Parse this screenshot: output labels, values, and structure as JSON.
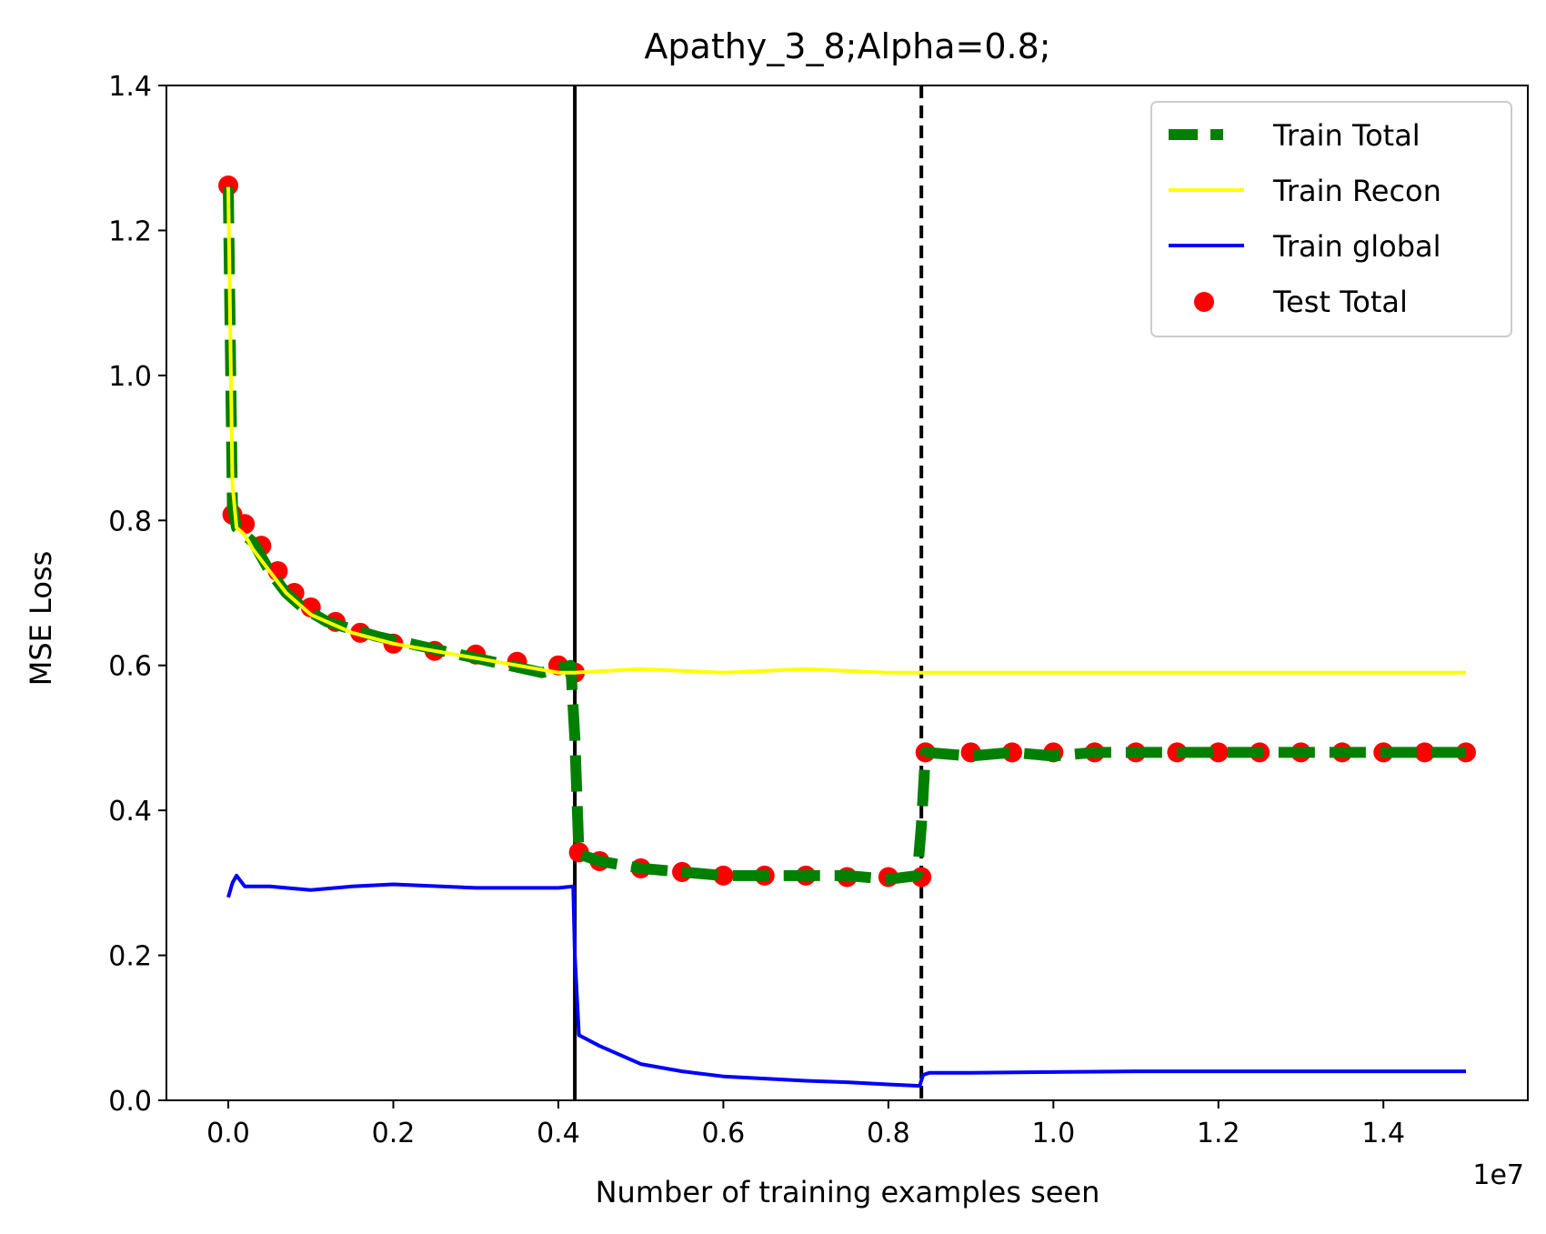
{
  "chart_data": {
    "type": "line",
    "title": "Apathy_3_8;Alpha=0.8;",
    "xlabel": "Number of training examples seen",
    "ylabel": "MSE Loss",
    "x_offset_label": "1e7",
    "xlim": [
      -0.075,
      1.575
    ],
    "ylim": [
      0.0,
      1.4
    ],
    "x_ticks": [
      0.0,
      0.2,
      0.4,
      0.6,
      0.8,
      1.0,
      1.2,
      1.4
    ],
    "x_tick_labels": [
      "0.0",
      "0.2",
      "0.4",
      "0.6",
      "0.8",
      "1.0",
      "1.2",
      "1.4"
    ],
    "y_ticks": [
      0.0,
      0.2,
      0.4,
      0.6,
      0.8,
      1.0,
      1.2,
      1.4
    ],
    "y_tick_labels": [
      "0.0",
      "0.2",
      "0.4",
      "0.6",
      "0.8",
      "1.0",
      "1.2",
      "1.4"
    ],
    "grid": false,
    "legend_position": "top-right",
    "vlines": [
      {
        "x": 0.42,
        "style": "solid",
        "color": "#000000"
      },
      {
        "x": 0.84,
        "style": "dashed",
        "color": "#000000"
      }
    ],
    "series": [
      {
        "name": "Train Total",
        "type": "line",
        "color": "#008000",
        "style": "dashed-thick",
        "x": [
          0.0,
          0.005,
          0.01,
          0.02,
          0.03,
          0.04,
          0.05,
          0.07,
          0.09,
          0.12,
          0.15,
          0.18,
          0.22,
          0.26,
          0.3,
          0.34,
          0.38,
          0.415,
          0.42,
          0.425,
          0.45,
          0.5,
          0.55,
          0.6,
          0.65,
          0.7,
          0.75,
          0.8,
          0.835,
          0.84,
          0.845,
          0.9,
          0.95,
          1.0,
          1.05,
          1.1,
          1.15,
          1.2,
          1.25,
          1.3,
          1.35,
          1.4,
          1.45,
          1.5
        ],
        "y": [
          1.26,
          0.82,
          0.79,
          0.78,
          0.77,
          0.75,
          0.73,
          0.7,
          0.68,
          0.66,
          0.65,
          0.64,
          0.63,
          0.62,
          0.61,
          0.6,
          0.59,
          0.6,
          0.5,
          0.34,
          0.33,
          0.32,
          0.315,
          0.31,
          0.31,
          0.31,
          0.31,
          0.305,
          0.31,
          0.38,
          0.48,
          0.475,
          0.48,
          0.475,
          0.48,
          0.48,
          0.48,
          0.48,
          0.48,
          0.48,
          0.48,
          0.48,
          0.48,
          0.48
        ]
      },
      {
        "name": "Train Recon",
        "type": "line",
        "color": "#ffff00",
        "x": [
          0.0,
          0.005,
          0.01,
          0.02,
          0.03,
          0.05,
          0.07,
          0.1,
          0.15,
          0.2,
          0.25,
          0.3,
          0.35,
          0.4,
          0.42,
          0.5,
          0.6,
          0.7,
          0.8,
          0.84,
          0.9,
          1.0,
          1.1,
          1.2,
          1.3,
          1.4,
          1.5
        ],
        "y": [
          1.26,
          0.85,
          0.79,
          0.78,
          0.76,
          0.73,
          0.7,
          0.67,
          0.645,
          0.63,
          0.62,
          0.61,
          0.6,
          0.59,
          0.59,
          0.595,
          0.59,
          0.595,
          0.59,
          0.59,
          0.59,
          0.59,
          0.59,
          0.59,
          0.59,
          0.59,
          0.59
        ]
      },
      {
        "name": "Train global",
        "type": "line",
        "color": "#0000ff",
        "x": [
          0.0,
          0.005,
          0.01,
          0.02,
          0.05,
          0.1,
          0.15,
          0.2,
          0.3,
          0.4,
          0.418,
          0.42,
          0.425,
          0.45,
          0.5,
          0.55,
          0.6,
          0.65,
          0.7,
          0.75,
          0.8,
          0.838,
          0.842,
          0.85,
          0.9,
          1.0,
          1.1,
          1.2,
          1.3,
          1.4,
          1.5
        ],
        "y": [
          0.28,
          0.3,
          0.31,
          0.295,
          0.295,
          0.29,
          0.295,
          0.298,
          0.293,
          0.293,
          0.295,
          0.2,
          0.09,
          0.075,
          0.05,
          0.04,
          0.033,
          0.03,
          0.027,
          0.025,
          0.022,
          0.02,
          0.035,
          0.038,
          0.038,
          0.039,
          0.04,
          0.04,
          0.04,
          0.04,
          0.04
        ]
      },
      {
        "name": "Test Total",
        "type": "scatter",
        "color": "#ff0000",
        "x": [
          0.0,
          0.005,
          0.02,
          0.04,
          0.06,
          0.08,
          0.1,
          0.13,
          0.16,
          0.2,
          0.25,
          0.3,
          0.35,
          0.4,
          0.42,
          0.425,
          0.45,
          0.5,
          0.55,
          0.6,
          0.65,
          0.7,
          0.75,
          0.8,
          0.84,
          0.845,
          0.9,
          0.95,
          1.0,
          1.05,
          1.1,
          1.15,
          1.2,
          1.25,
          1.3,
          1.35,
          1.4,
          1.45,
          1.5
        ],
        "y": [
          1.262,
          0.808,
          0.795,
          0.765,
          0.73,
          0.7,
          0.68,
          0.66,
          0.645,
          0.63,
          0.62,
          0.615,
          0.605,
          0.6,
          0.59,
          0.342,
          0.33,
          0.32,
          0.315,
          0.31,
          0.31,
          0.31,
          0.308,
          0.308,
          0.308,
          0.48,
          0.48,
          0.48,
          0.48,
          0.48,
          0.48,
          0.48,
          0.48,
          0.48,
          0.48,
          0.48,
          0.48,
          0.48,
          0.48
        ]
      }
    ]
  }
}
